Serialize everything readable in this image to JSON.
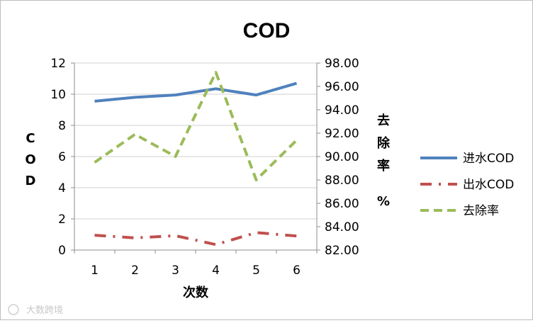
{
  "chart_data": {
    "type": "line",
    "title": "COD",
    "xlabel": "次数",
    "ylabel_left": "COD",
    "ylabel_right": "去除率 %",
    "categories": [
      "1",
      "2",
      "3",
      "4",
      "5",
      "6"
    ],
    "y_left": {
      "min": 0,
      "max": 12,
      "step": 2,
      "ticks": [
        "0",
        "2",
        "4",
        "6",
        "8",
        "10",
        "12"
      ]
    },
    "y_right": {
      "min": 82,
      "max": 98,
      "step": 2,
      "ticks": [
        "82.00",
        "84.00",
        "86.00",
        "88.00",
        "90.00",
        "92.00",
        "94.00",
        "96.00",
        "98.00"
      ]
    },
    "grid": true,
    "legend_position": "right",
    "series": [
      {
        "name": "进水COD",
        "axis": "left",
        "values": [
          9.55,
          9.8,
          9.95,
          10.35,
          9.95,
          10.7
        ],
        "color": "#4F81BD",
        "style": "solid"
      },
      {
        "name": "出水COD",
        "axis": "left",
        "values": [
          0.95,
          0.78,
          0.92,
          0.35,
          1.12,
          0.9
        ],
        "color": "#C0504D",
        "style": "dashdot"
      },
      {
        "name": "去除率",
        "axis": "right",
        "values": [
          89.5,
          91.9,
          90.0,
          97.2,
          88.0,
          91.4
        ],
        "color": "#9BBB59",
        "style": "dash"
      }
    ]
  },
  "watermark": "大数跨境"
}
